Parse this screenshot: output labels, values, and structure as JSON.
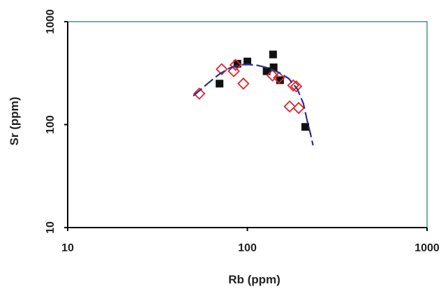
{
  "chart_data": {
    "type": "scatter",
    "title": "",
    "xlabel": "Rb (ppm)",
    "ylabel": "Sr (ppm)",
    "x_scale": "log",
    "y_scale": "log",
    "xlim": [
      10,
      1000
    ],
    "ylim": [
      10,
      1000
    ],
    "x_ticks": [
      10,
      100,
      1000
    ],
    "y_ticks": [
      10,
      100,
      1000
    ],
    "x_tick_labels": [
      "10",
      "100",
      "1000"
    ],
    "y_tick_labels": [
      "10",
      "100",
      "1000"
    ],
    "grid": false,
    "colors": {
      "axes": "#000000",
      "frame": "#3a9a8c",
      "filled_series": "#111111",
      "open_series": "#e0262b",
      "curve": "#2b2f8c"
    },
    "series": [
      {
        "marker": "filled-square",
        "points": [
          {
            "x": 70,
            "y": 250
          },
          {
            "x": 88,
            "y": 390
          },
          {
            "x": 100,
            "y": 410
          },
          {
            "x": 128,
            "y": 330
          },
          {
            "x": 139,
            "y": 480
          },
          {
            "x": 140,
            "y": 360
          },
          {
            "x": 152,
            "y": 270
          },
          {
            "x": 210,
            "y": 95
          }
        ]
      },
      {
        "marker": "open-diamond",
        "points": [
          {
            "x": 54,
            "y": 200
          },
          {
            "x": 72,
            "y": 345
          },
          {
            "x": 84,
            "y": 330
          },
          {
            "x": 86,
            "y": 380
          },
          {
            "x": 95,
            "y": 250
          },
          {
            "x": 138,
            "y": 300
          },
          {
            "x": 150,
            "y": 285
          },
          {
            "x": 172,
            "y": 150
          },
          {
            "x": 180,
            "y": 240
          },
          {
            "x": 187,
            "y": 235
          },
          {
            "x": 193,
            "y": 145
          }
        ]
      },
      {
        "marker": "curve",
        "points": [
          {
            "x": 50,
            "y": 190
          },
          {
            "x": 60,
            "y": 250
          },
          {
            "x": 70,
            "y": 310
          },
          {
            "x": 80,
            "y": 355
          },
          {
            "x": 90,
            "y": 380
          },
          {
            "x": 100,
            "y": 385
          },
          {
            "x": 115,
            "y": 375
          },
          {
            "x": 130,
            "y": 355
          },
          {
            "x": 150,
            "y": 320
          },
          {
            "x": 170,
            "y": 280
          },
          {
            "x": 190,
            "y": 220
          },
          {
            "x": 205,
            "y": 160
          },
          {
            "x": 215,
            "y": 110
          },
          {
            "x": 225,
            "y": 80
          },
          {
            "x": 232,
            "y": 63
          }
        ]
      }
    ]
  }
}
